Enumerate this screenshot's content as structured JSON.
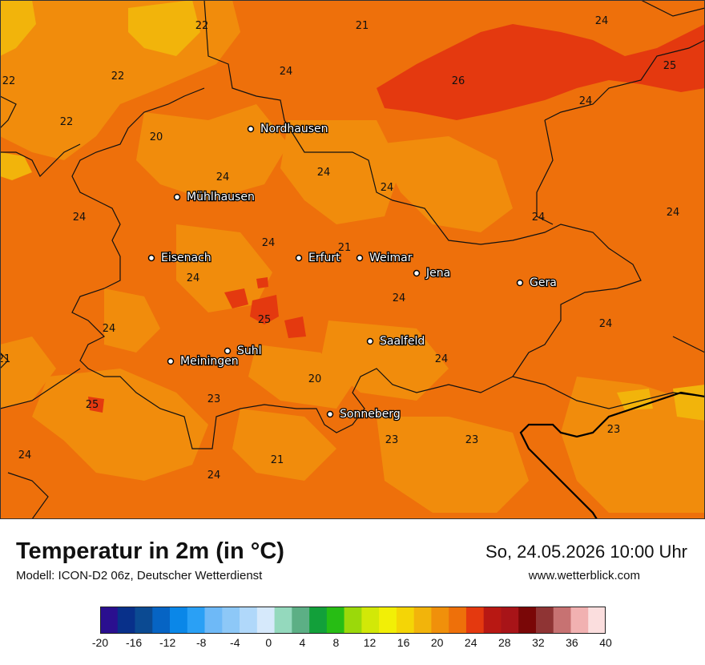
{
  "header": {
    "title": "Temperatur in 2m (in °C)",
    "subtitle": "Modell: ICON-D2 06z, Deutscher Wetterdienst",
    "datetime": "So, 24.05.2026 10:00 Uhr",
    "website": "www.wetterblick.com"
  },
  "cities": [
    {
      "name": "Nordhausen"
    },
    {
      "name": "Mühlhausen"
    },
    {
      "name": "Eisenach"
    },
    {
      "name": "Erfurt"
    },
    {
      "name": "Weimar"
    },
    {
      "name": "Jena"
    },
    {
      "name": "Gera"
    },
    {
      "name": "Suhl"
    },
    {
      "name": "Meiningen"
    },
    {
      "name": "Saalfeld"
    },
    {
      "name": "Sonneberg"
    }
  ],
  "values": [
    "22",
    "21",
    "24",
    "22",
    "24",
    "22",
    "26",
    "25",
    "22",
    "20",
    "24",
    "24",
    "24",
    "24",
    "24",
    "24",
    "21",
    "24",
    "24",
    "24",
    "24",
    "25",
    "24",
    "21",
    "24",
    "20",
    "23",
    "25",
    "23",
    "23",
    "23",
    "24",
    "24",
    "21"
  ],
  "colorscale": {
    "labels": [
      "-20",
      "-16",
      "-12",
      "-8",
      "-4",
      "0",
      "4",
      "8",
      "12",
      "16",
      "20",
      "24",
      "28",
      "32",
      "36",
      "40"
    ],
    "colors": [
      "#2a0f8f",
      "#08308a",
      "#0b4a92",
      "#0664c4",
      "#0a87e8",
      "#2aa0f5",
      "#6eb9f7",
      "#8dc8f7",
      "#b0d8fa",
      "#d6e9fb",
      "#94d9bd",
      "#5caf85",
      "#12a03a",
      "#27bd14",
      "#9bd90a",
      "#d2e808",
      "#f2ef06",
      "#f4d506",
      "#f2b40b",
      "#f0900b",
      "#ee700a",
      "#e4390f",
      "#b81813",
      "#a81418",
      "#7a0707",
      "#8f3434",
      "#c77272",
      "#f1b1b1",
      "#fbdede"
    ]
  }
}
